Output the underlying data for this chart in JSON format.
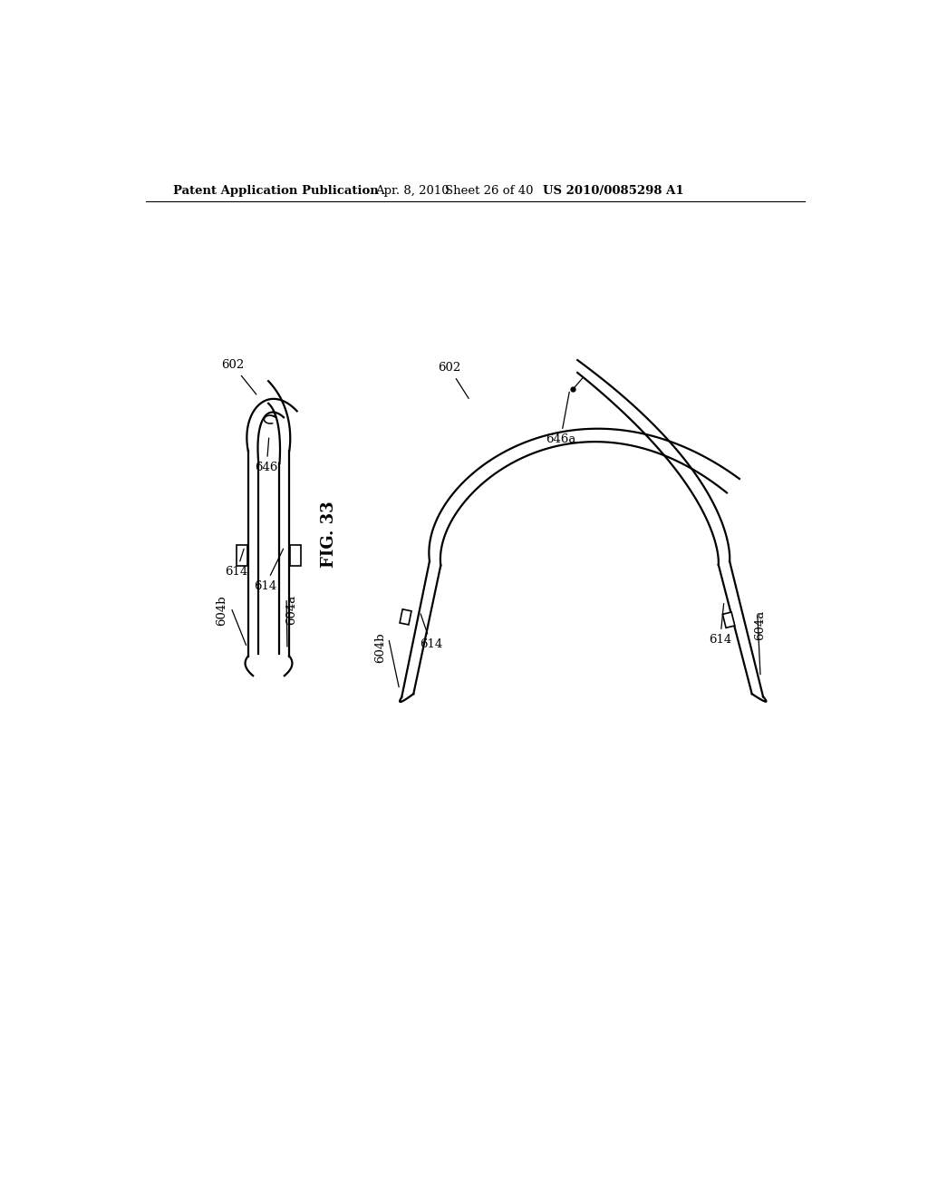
{
  "bg_color": "#ffffff",
  "header_text": "Patent Application Publication",
  "header_date": "Apr. 8, 2010",
  "header_sheet": "Sheet 26 of 40",
  "header_patent": "US 2010/0085298 A1",
  "fig_label": "FIG. 33"
}
